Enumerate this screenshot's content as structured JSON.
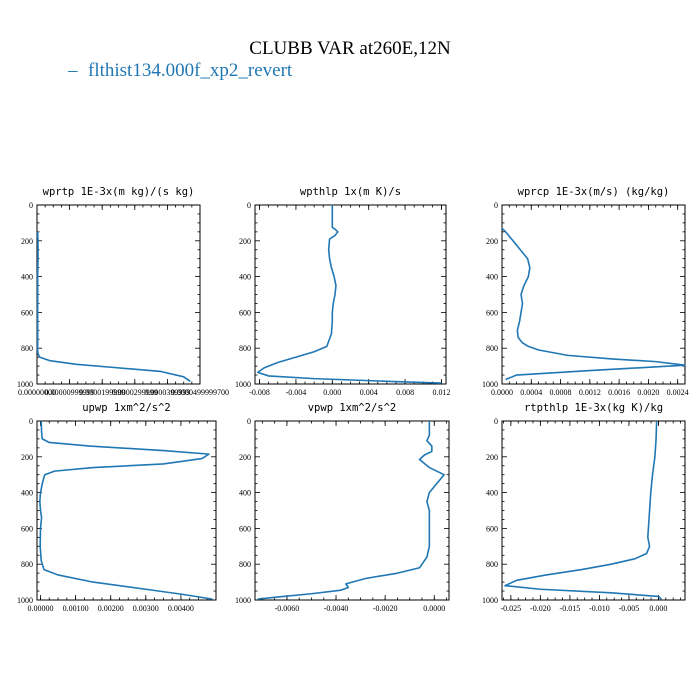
{
  "figure": {
    "title": "CLUBB VAR at260E,12N",
    "legend_label": "flthist134.000f_xp2_revert",
    "series_color": "#1f77b4"
  },
  "chart_data": [
    {
      "type": "line",
      "title": "wprtp  1E-3x(m kg)/(s kg)",
      "xlim": [
        0,
        5e-05
      ],
      "ylim": [
        1000,
        0
      ],
      "xticks": [
        0,
        1e-05,
        2e-05,
        3e-05,
        4e-05,
        5e-05
      ],
      "xtick_labels": [
        "0.00000000",
        "0.00000999999",
        "0.0000199999",
        "0.0000299999",
        "0.0000399999",
        "0.0000499999700"
      ],
      "yticks": [
        0,
        200,
        400,
        600,
        800,
        1000
      ],
      "ytick_labels": [
        "0",
        "200",
        "400",
        "600",
        "800",
        "1000"
      ],
      "series": [
        {
          "x": [
            2e-07,
            3e-07,
            3e-07,
            2e-07,
            2e-07,
            2e-07,
            2e-07,
            2e-07,
            2e-07,
            3e-07,
            8e-07,
            4e-06,
            1.2e-05,
            2.5e-05,
            3.8e-05,
            4.5e-05,
            4.7e-05
          ],
          "y": [
            150,
            200,
            300,
            400,
            500,
            600,
            700,
            780,
            810,
            830,
            850,
            870,
            890,
            910,
            930,
            960,
            985
          ]
        }
      ]
    },
    {
      "type": "line",
      "title": "wpthlp  1x(m K)/s",
      "xlim": [
        -0.0085,
        0.0125
      ],
      "ylim": [
        1000,
        0
      ],
      "xticks": [
        -0.008,
        -0.004,
        0,
        0.004,
        0.008,
        0.012
      ],
      "xtick_labels": [
        "-0.008",
        "-0.004",
        "0.000",
        "0.004",
        "0.008",
        "0.012"
      ],
      "yticks": [
        0,
        200,
        400,
        600,
        800,
        1000
      ],
      "ytick_labels": [
        "0",
        "200",
        "400",
        "600",
        "800",
        "1000"
      ],
      "series": [
        {
          "x": [
            0.0,
            0.0,
            0.0,
            0.0003,
            0.0006,
            0.0003,
            -0.0003,
            -0.0004,
            -0.0003,
            -0.0001,
            0.0002,
            0.0004,
            0.0003,
            0.0001,
            0.0,
            0.0,
            -0.0001,
            -0.0006,
            -0.002,
            -0.004,
            -0.006,
            -0.0075,
            -0.0082,
            -0.007,
            -0.002,
            0.006,
            0.012
          ],
          "y": [
            0,
            80,
            125,
            135,
            150,
            170,
            190,
            250,
            300,
            350,
            400,
            450,
            500,
            550,
            600,
            650,
            720,
            790,
            820,
            850,
            880,
            910,
            935,
            955,
            970,
            985,
            995
          ]
        }
      ]
    },
    {
      "type": "line",
      "title": "wprcp  1E-3x(m/s) (kg/kg)",
      "xlim": [
        0,
        0.0025
      ],
      "ylim": [
        1000,
        0
      ],
      "xticks": [
        0,
        0.0004,
        0.0008,
        0.0012,
        0.0016,
        0.002,
        0.0024
      ],
      "xtick_labels": [
        "0.0000",
        "0.0004",
        "0.0008",
        "0.0012",
        "0.0016",
        "0.0020",
        "0.0024"
      ],
      "yticks": [
        0,
        200,
        400,
        600,
        800,
        1000
      ],
      "ytick_labels": [
        "0",
        "200",
        "400",
        "600",
        "800",
        "1000"
      ],
      "series": [
        {
          "x": [
            0.0,
            5e-05,
            0.00015,
            0.00025,
            0.00035,
            0.00038,
            0.00036,
            0.0003,
            0.00026,
            0.00028,
            0.00026,
            0.00024,
            0.00021,
            0.00022,
            0.00028,
            0.00036,
            0.0005,
            0.0009,
            0.0015,
            0.0021,
            0.0025,
            0.0012,
            0.0002,
            5e-05
          ],
          "y": [
            130,
            150,
            200,
            250,
            300,
            350,
            400,
            450,
            500,
            550,
            600,
            650,
            700,
            740,
            770,
            790,
            810,
            840,
            860,
            875,
            895,
            925,
            950,
            975
          ]
        }
      ]
    },
    {
      "type": "line",
      "title": "upwp  1xm^2/s^2",
      "xlim": [
        -0.0001,
        0.005
      ],
      "ylim": [
        1000,
        0
      ],
      "xticks": [
        0,
        0.001,
        0.002,
        0.003,
        0.004
      ],
      "xtick_labels": [
        "0.00000",
        "0.00100",
        "0.00200",
        "0.00300",
        "0.00400"
      ],
      "yticks": [
        0,
        200,
        400,
        600,
        800,
        1000
      ],
      "ytick_labels": [
        "0",
        "200",
        "400",
        "600",
        "800",
        "1000"
      ],
      "series": [
        {
          "x": [
            2e-05,
            3e-05,
            5e-05,
            0.00025,
            0.0014,
            0.0035,
            0.0048,
            0.0046,
            0.0035,
            0.0015,
            0.0004,
            0.00012,
            5e-05,
            0.0,
            -2e-05,
            0.0,
            3e-05,
            0.0,
            -1e-05,
            2e-05,
            0.0001,
            0.0005,
            0.0015,
            0.003,
            0.0041,
            0.0049
          ],
          "y": [
            0,
            60,
            100,
            120,
            140,
            165,
            185,
            210,
            240,
            260,
            280,
            300,
            350,
            400,
            450,
            500,
            540,
            600,
            700,
            780,
            830,
            860,
            900,
            940,
            970,
            995
          ]
        }
      ]
    },
    {
      "type": "line",
      "title": "vpwp  1xm^2/s^2",
      "xlim": [
        -0.0073,
        0.0006
      ],
      "ylim": [
        1000,
        0
      ],
      "xticks": [
        -0.006,
        -0.004,
        -0.002,
        0
      ],
      "xtick_labels": [
        "-0.0060",
        "-0.0040",
        "-0.0020",
        "0.0000"
      ],
      "yticks": [
        0,
        200,
        400,
        600,
        800,
        1000
      ],
      "ytick_labels": [
        "0",
        "200",
        "400",
        "600",
        "800",
        "1000"
      ],
      "series": [
        {
          "x": [
            -0.0002,
            -0.0002,
            -0.0003,
            -0.0001,
            -0.0001,
            -0.0004,
            -0.0006,
            -0.0002,
            0.0004,
            0.0001,
            -0.0002,
            -0.0003,
            -0.0002,
            -0.0002,
            -0.0002,
            -0.0002,
            -0.0002,
            -0.0003,
            -0.0006,
            -0.0015,
            -0.0028,
            -0.0036,
            -0.0035,
            -0.0038,
            -0.005,
            -0.0065,
            -0.0072
          ],
          "y": [
            0,
            80,
            110,
            140,
            170,
            190,
            215,
            260,
            300,
            350,
            400,
            450,
            500,
            550,
            600,
            650,
            700,
            760,
            820,
            850,
            880,
            910,
            930,
            945,
            965,
            985,
            995
          ]
        }
      ]
    },
    {
      "type": "line",
      "title": "rtpthlp  1E-3x(kg K)/kg",
      "xlim": [
        -0.0265,
        0.0045
      ],
      "ylim": [
        1000,
        0
      ],
      "xticks": [
        -0.025,
        -0.02,
        -0.015,
        -0.01,
        -0.005,
        0
      ],
      "xtick_labels": [
        "-0.025",
        "-0.020",
        "-0.015",
        "-0.010",
        "-0.005",
        "0.000"
      ],
      "yticks": [
        0,
        200,
        400,
        600,
        800,
        1000
      ],
      "ytick_labels": [
        "0",
        "200",
        "400",
        "600",
        "800",
        "1000"
      ],
      "series": [
        {
          "x": [
            -0.0003,
            -0.0004,
            -0.0006,
            -0.001,
            -0.0013,
            -0.0015,
            -0.0017,
            -0.0018,
            -0.0015,
            -0.002,
            -0.004,
            -0.008,
            -0.013,
            -0.019,
            -0.024,
            -0.026,
            -0.02,
            -0.008,
            0.0,
            0.0005
          ],
          "y": [
            0,
            100,
            200,
            300,
            400,
            500,
            600,
            650,
            700,
            740,
            770,
            800,
            830,
            860,
            890,
            920,
            940,
            960,
            980,
            995
          ]
        }
      ]
    }
  ]
}
